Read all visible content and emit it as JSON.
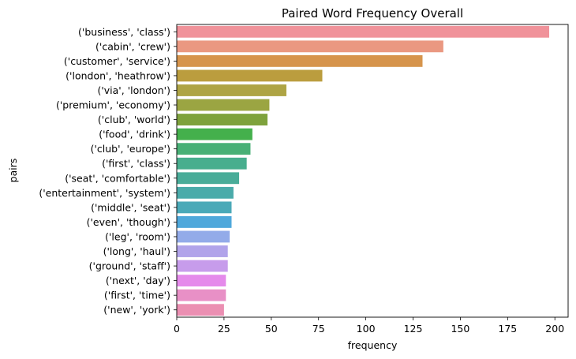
{
  "chart_data": {
    "type": "bar",
    "orientation": "horizontal",
    "title": "Paired Word Frequency Overall",
    "xlabel": "frequency",
    "ylabel": "pairs",
    "xlim": [
      0,
      207
    ],
    "xticks": [
      0,
      25,
      50,
      75,
      100,
      125,
      150,
      175,
      200
    ],
    "grid": false,
    "categories": [
      "('business', 'class')",
      "('cabin', 'crew')",
      "('customer', 'service')",
      "('london', 'heathrow')",
      "('via', 'london')",
      "('premium', 'economy')",
      "('club', 'world')",
      "('food', 'drink')",
      "('club', 'europe')",
      "('first', 'class')",
      "('seat', 'comfortable')",
      "('entertainment', 'system')",
      "('middle', 'seat')",
      "('even', 'though')",
      "('leg', 'room')",
      "('long', 'haul')",
      "('ground', 'staff')",
      "('next', 'day')",
      "('first', 'time')",
      "('new', 'york')"
    ],
    "values": [
      197,
      141,
      130,
      77,
      58,
      49,
      48,
      40,
      39,
      37,
      33,
      30,
      29,
      29,
      28,
      27,
      27,
      26,
      26,
      25
    ],
    "colors": [
      "#f0929a",
      "#ea9881",
      "#d6944c",
      "#bb9d3e",
      "#aea444",
      "#9ba542",
      "#7ea23c",
      "#44b04c",
      "#48b076",
      "#48ae8e",
      "#49ac99",
      "#4aabaa",
      "#4aa9b8",
      "#4fa8db",
      "#93abe9",
      "#b1a3ea",
      "#c79ceb",
      "#e58aeb",
      "#e890c6",
      "#eb8fb2"
    ]
  }
}
